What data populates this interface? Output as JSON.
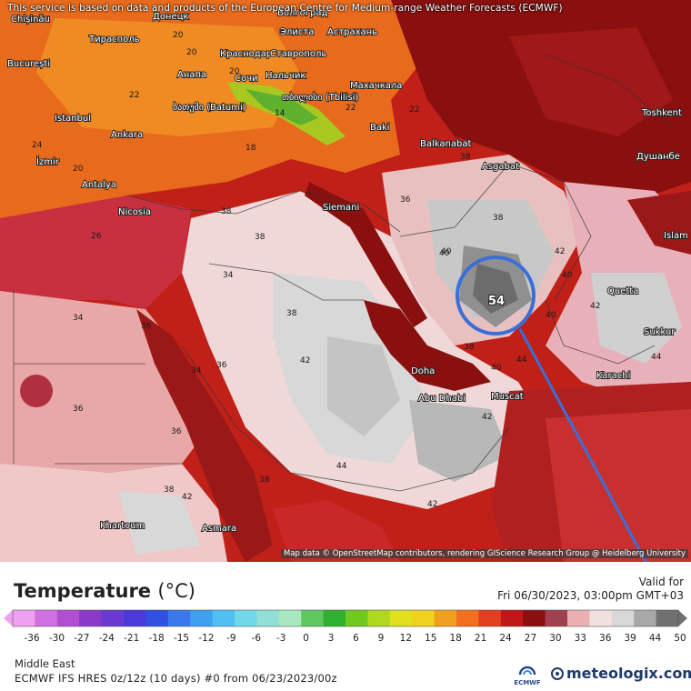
{
  "header": {
    "service_note": "This service is based on data and products of the European Centre for Medium-range Weather Forecasts (ECMWF)"
  },
  "map": {
    "attribution": "Map data © OpenStreetMap contributors, rendering GIScience Research Group @ Heidelberg University",
    "highlight_value": "54",
    "places": [
      "Chișinău",
      "Донецк",
      "Волгоград",
      "Тирасполь",
      "Элиста",
      "Астрахань",
      "București",
      "Краснодар",
      "Ставрополь",
      "Анапа",
      "Сочи",
      "Нальчик",
      "Махачкала",
      "თბილისი (Tbilisi)",
      "ბათუმი (Batumi)",
      "Istanbul",
      "Baki",
      "Toshkent",
      "Ankara",
      "Balkanabat",
      "Душанбе",
      "İzmir",
      "Asgabat",
      "Antalya",
      "Nicosia",
      "Siemani",
      "Islam",
      "Quetta",
      "Sukkur",
      "Karachi",
      "Doha",
      "Abu Dhabi",
      "Muscat",
      "Khartoum",
      "Asmara"
    ],
    "temperature_labels": [
      "20",
      "20",
      "20",
      "22",
      "14",
      "22",
      "24",
      "22",
      "18",
      "20",
      "26",
      "38",
      "34",
      "38",
      "36",
      "40",
      "42",
      "40",
      "38",
      "36",
      "44",
      "42",
      "40",
      "42",
      "44",
      "38",
      "36",
      "38",
      "36",
      "34",
      "38",
      "44",
      "42",
      "40",
      "38",
      "42",
      "36",
      "34",
      "38",
      "40",
      "42"
    ]
  },
  "legend": {
    "title": "Temperature",
    "unit": "(°C)",
    "valid_label": "Valid for",
    "valid_time": "Fri 06/30/2023, 03:00pm GMT+03",
    "ticks": [
      "-36",
      "-30",
      "-27",
      "-24",
      "-21",
      "-18",
      "-15",
      "-12",
      "-9",
      "-6",
      "-3",
      "0",
      "3",
      "6",
      "9",
      "12",
      "15",
      "18",
      "21",
      "24",
      "27",
      "30",
      "33",
      "36",
      "39",
      "44",
      "50"
    ],
    "colors": [
      "#f0a0f0",
      "#d070e0",
      "#b050d0",
      "#8a3ac8",
      "#6a3ad0",
      "#4a3ad8",
      "#3050e0",
      "#3a78ec",
      "#40a0f0",
      "#50c0f0",
      "#70d8e8",
      "#90e0d8",
      "#a8e8c0",
      "#60c860",
      "#30b030",
      "#70c820",
      "#b0d820",
      "#e0e020",
      "#f0d020",
      "#f0a020",
      "#f07020",
      "#e04020",
      "#c01818",
      "#8a1010",
      "#a04050",
      "#e8b0b0",
      "#f0e0e0",
      "#d8d8d8",
      "#a8a8a8",
      "#707070"
    ]
  },
  "footer": {
    "region": "Middle East",
    "model_run": "ECMWF IFS HRES 0z/12z (10 days) #0 from  06/23/2023/00z",
    "ecmwf_label": "ECMWF",
    "brand": "meteologix.com"
  }
}
